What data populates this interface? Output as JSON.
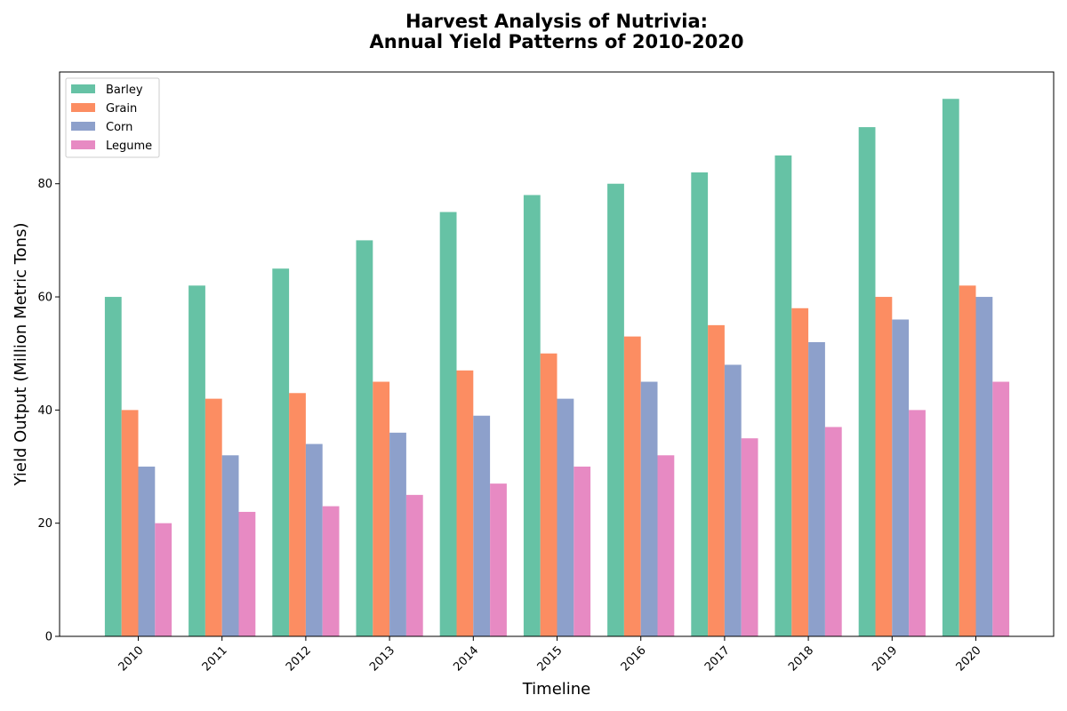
{
  "chart_data": {
    "type": "bar",
    "title_line1": "Harvest Analysis of Nutrivia:",
    "title_line2": "Annual Yield Patterns of 2010-2020",
    "xlabel": "Timeline",
    "ylabel": "Yield Output (Million Metric Tons)",
    "categories": [
      "2010",
      "2011",
      "2012",
      "2013",
      "2014",
      "2015",
      "2016",
      "2017",
      "2018",
      "2019",
      "2020"
    ],
    "series": [
      {
        "name": "Barley",
        "color": "#66c2a5",
        "values": [
          60,
          62,
          65,
          70,
          75,
          78,
          80,
          82,
          85,
          90,
          95
        ]
      },
      {
        "name": "Grain",
        "color": "#fc8d62",
        "values": [
          40,
          42,
          43,
          45,
          47,
          50,
          53,
          55,
          58,
          60,
          62
        ]
      },
      {
        "name": "Corn",
        "color": "#8da0cb",
        "values": [
          30,
          32,
          34,
          36,
          39,
          42,
          45,
          48,
          52,
          56,
          60
        ]
      },
      {
        "name": "Legume",
        "color": "#e78ac3",
        "values": [
          20,
          22,
          23,
          25,
          27,
          30,
          32,
          35,
          37,
          40,
          45
        ]
      }
    ],
    "ylim": [
      0,
      99.75
    ],
    "yticks": [
      0,
      20,
      40,
      60,
      80
    ],
    "legend_position": "top-left",
    "grid": false
  }
}
